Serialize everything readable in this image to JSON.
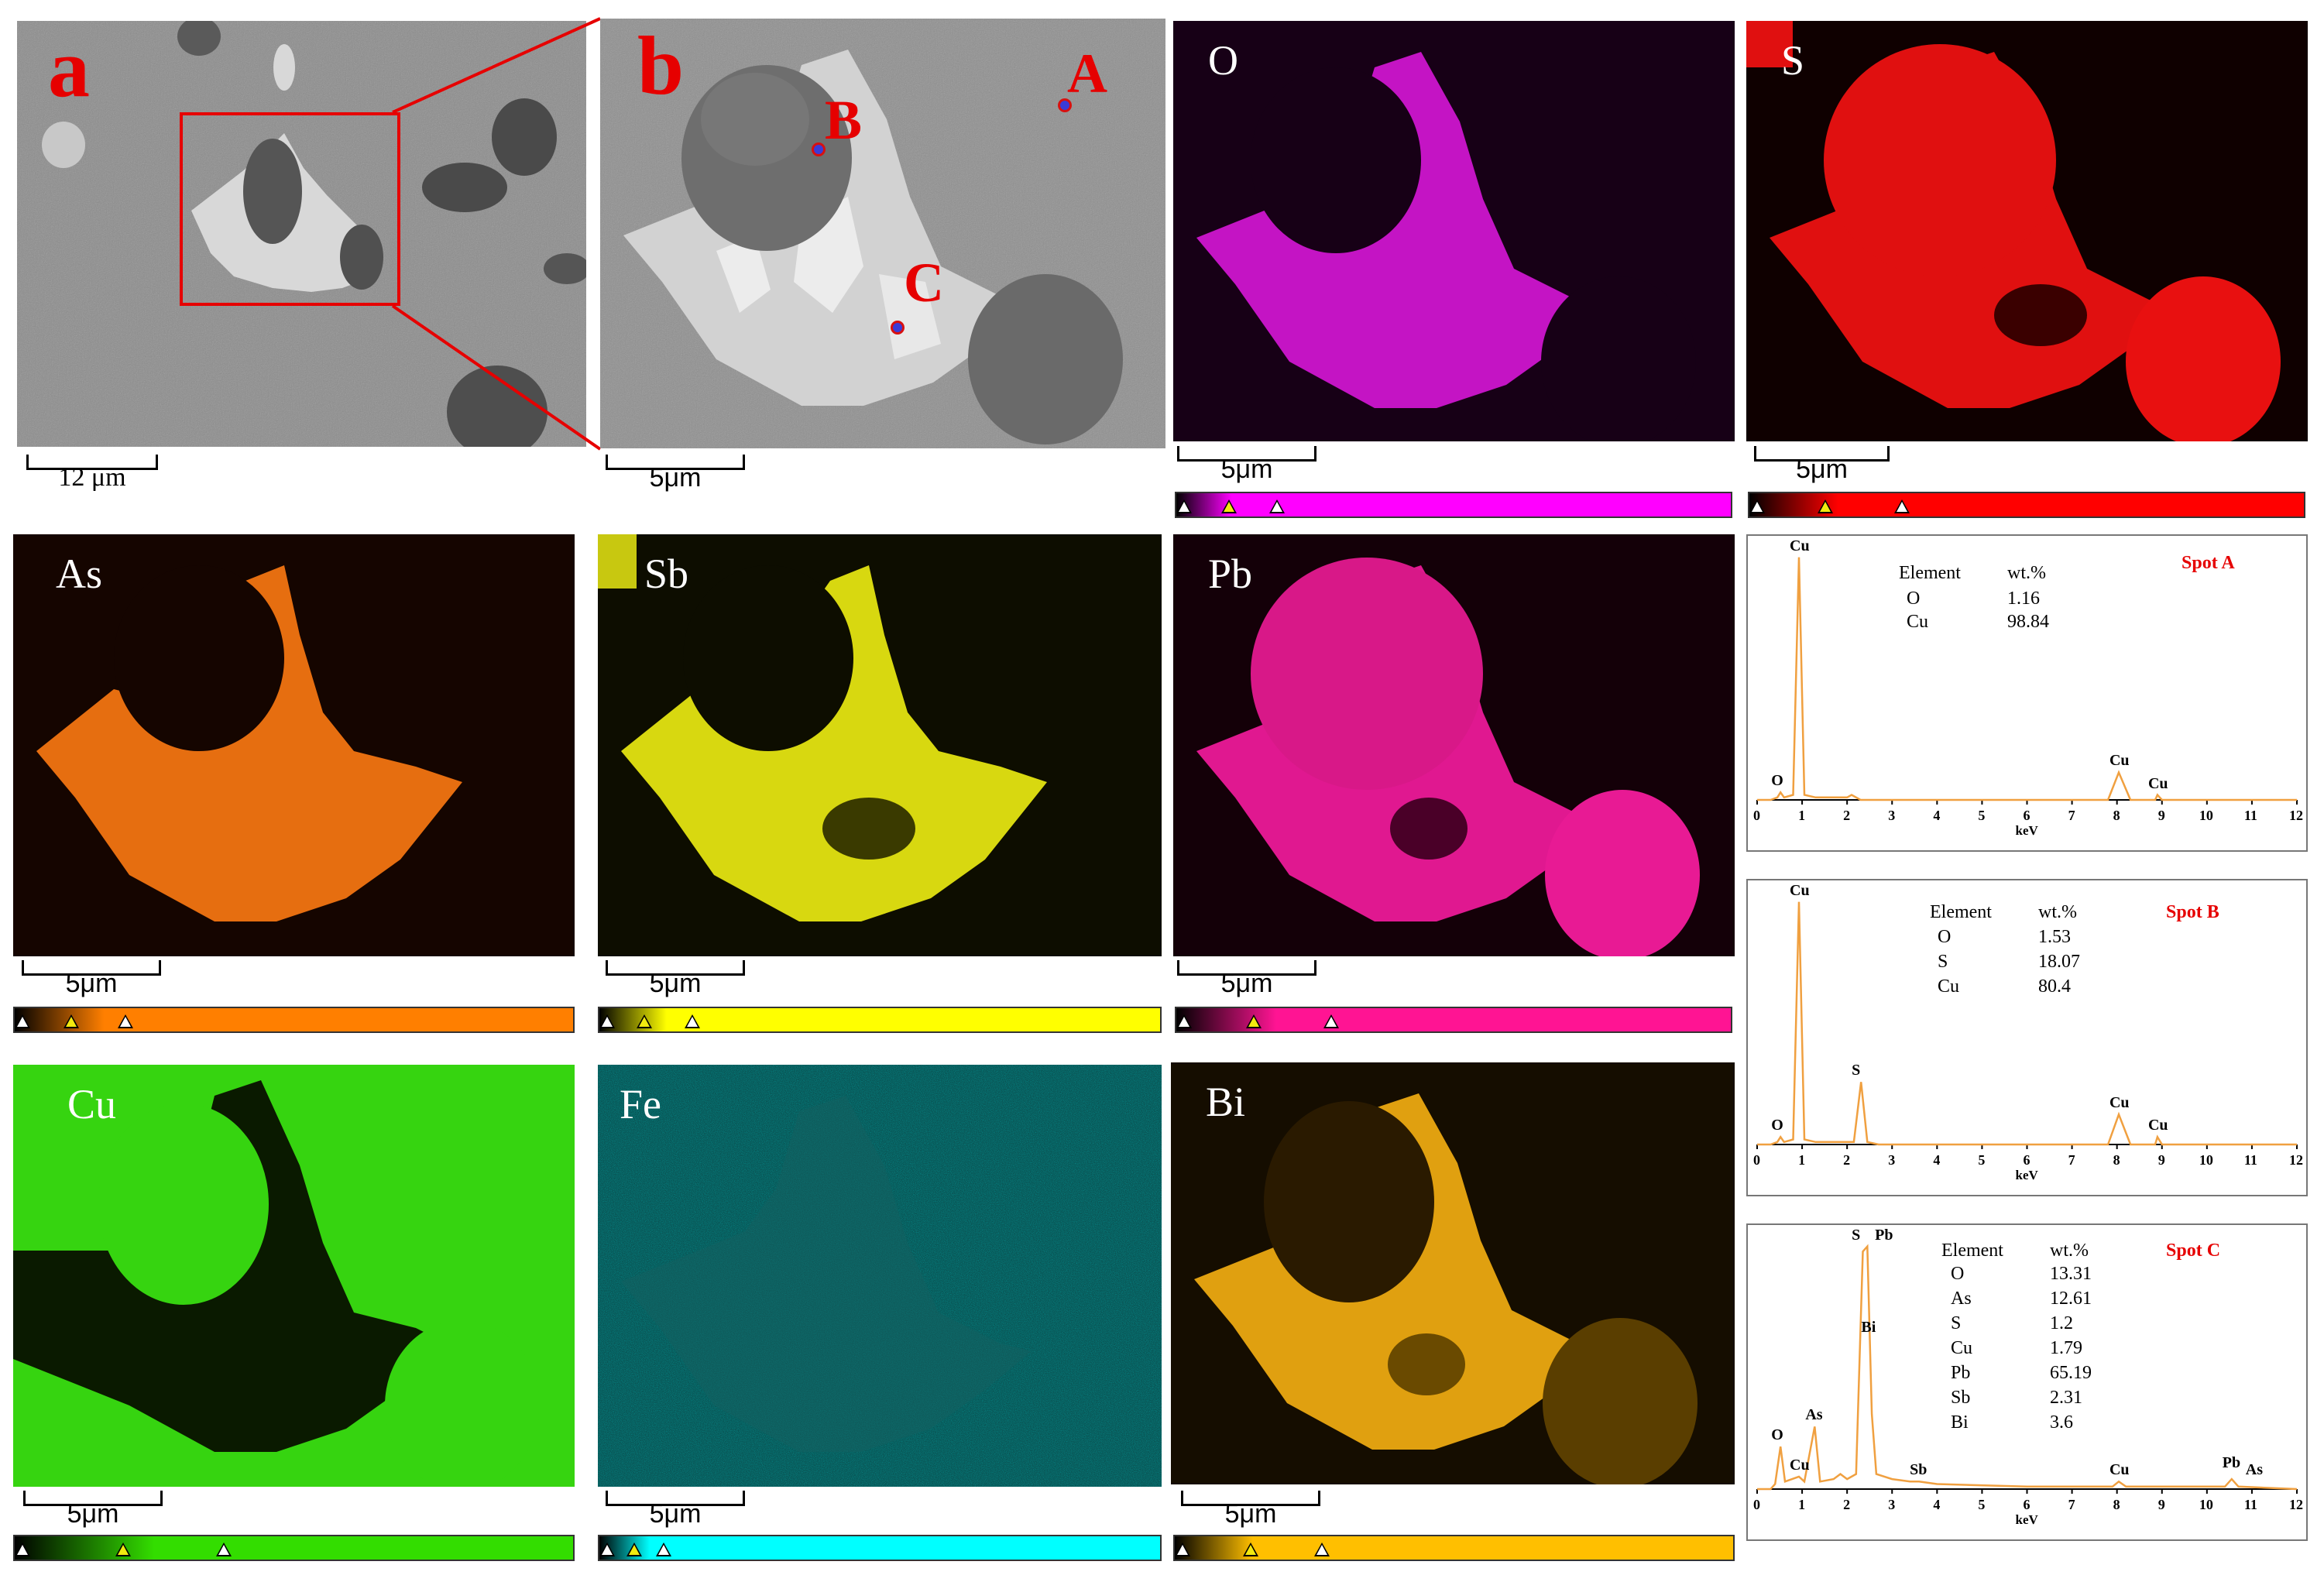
{
  "panels": {
    "a": {
      "label": "a",
      "scale": "12 μm"
    },
    "b": {
      "label": "b",
      "scale": "5μm",
      "spots": [
        "A",
        "B",
        "C"
      ]
    },
    "O": {
      "label": "O",
      "scale": "5μm",
      "color": "#ff00ff"
    },
    "S": {
      "label": "S",
      "scale": "5μm",
      "color": "#ff0000"
    },
    "As": {
      "label": "As",
      "scale": "5μm",
      "color": "#ff7f00"
    },
    "Sb": {
      "label": "Sb",
      "scale": "5μm",
      "color": "#ffff00"
    },
    "Pb": {
      "label": "Pb",
      "scale": "5μm",
      "color": "#ff1493"
    },
    "Cu": {
      "label": "Cu",
      "scale": "5μm",
      "color": "#33dd00"
    },
    "Fe": {
      "label": "Fe",
      "scale": "5μm",
      "color": "#00ffff"
    },
    "Bi": {
      "label": "Bi",
      "scale": "5μm",
      "color": "#ffbf00"
    }
  },
  "spectra": [
    {
      "title": "Spot A",
      "header": [
        "Element",
        "wt.%"
      ],
      "rows": [
        [
          "O",
          "1.16"
        ],
        [
          "Cu",
          "98.84"
        ]
      ],
      "peaks": [
        {
          "label": "Cu",
          "kev": 0.93,
          "h": 0.97
        },
        {
          "label": "O",
          "kev": 0.52,
          "h": 0.03
        },
        {
          "label": "Cu",
          "kev": 8.04,
          "h": 0.11
        },
        {
          "label": "Cu",
          "kev": 8.9,
          "h": 0.02
        }
      ],
      "trace": [
        [
          0,
          0.0
        ],
        [
          0.3,
          0.0
        ],
        [
          0.45,
          0.01
        ],
        [
          0.52,
          0.03
        ],
        [
          0.6,
          0.01
        ],
        [
          0.8,
          0.02
        ],
        [
          0.93,
          0.97
        ],
        [
          1.05,
          0.02
        ],
        [
          1.3,
          0.01
        ],
        [
          2.0,
          0.01
        ],
        [
          2.1,
          0.02
        ],
        [
          2.3,
          0.0
        ],
        [
          7.8,
          0.0
        ],
        [
          8.04,
          0.11
        ],
        [
          8.3,
          0.0
        ],
        [
          8.85,
          0.0
        ],
        [
          8.9,
          0.02
        ],
        [
          9.0,
          0.0
        ],
        [
          12,
          0.0
        ]
      ]
    },
    {
      "title": "Spot B",
      "header": [
        "Element",
        "wt.%"
      ],
      "rows": [
        [
          "O",
          "1.53"
        ],
        [
          "S",
          "18.07"
        ],
        [
          "Cu",
          "80.4"
        ]
      ],
      "peaks": [
        {
          "label": "Cu",
          "kev": 0.93,
          "h": 0.97
        },
        {
          "label": "O",
          "kev": 0.52,
          "h": 0.03
        },
        {
          "label": "S",
          "kev": 2.31,
          "h": 0.25
        },
        {
          "label": "Cu",
          "kev": 8.04,
          "h": 0.12
        },
        {
          "label": "Cu",
          "kev": 8.9,
          "h": 0.03
        }
      ],
      "trace": [
        [
          0,
          0.0
        ],
        [
          0.3,
          0.0
        ],
        [
          0.45,
          0.01
        ],
        [
          0.52,
          0.03
        ],
        [
          0.6,
          0.01
        ],
        [
          0.8,
          0.02
        ],
        [
          0.93,
          0.97
        ],
        [
          1.05,
          0.02
        ],
        [
          1.3,
          0.01
        ],
        [
          2.15,
          0.01
        ],
        [
          2.31,
          0.25
        ],
        [
          2.45,
          0.01
        ],
        [
          2.7,
          0.0
        ],
        [
          7.8,
          0.0
        ],
        [
          8.04,
          0.12
        ],
        [
          8.3,
          0.0
        ],
        [
          8.85,
          0.0
        ],
        [
          8.9,
          0.03
        ],
        [
          9.0,
          0.0
        ],
        [
          12,
          0.0
        ]
      ]
    },
    {
      "title": "Spot C",
      "header": [
        "Element",
        "wt.%"
      ],
      "rows": [
        [
          "O",
          "13.31"
        ],
        [
          "As",
          "12.61"
        ],
        [
          "S",
          "1.2"
        ],
        [
          "Cu",
          "1.79"
        ],
        [
          "Pb",
          "65.19"
        ],
        [
          "Sb",
          "2.31"
        ],
        [
          "Bi",
          "3.6"
        ]
      ],
      "peaks": [
        {
          "label": "S",
          "kev": 2.31,
          "h": 0.97
        },
        {
          "label": "Pb",
          "kev": 2.45,
          "h": 0.97
        },
        {
          "label": "Bi",
          "kev": 2.52,
          "h": 0.6
        },
        {
          "label": "O",
          "kev": 0.52,
          "h": 0.17
        },
        {
          "label": "As",
          "kev": 1.28,
          "h": 0.25
        },
        {
          "label": "Cu",
          "kev": 0.93,
          "h": 0.05
        },
        {
          "label": "Sb",
          "kev": 3.6,
          "h": 0.03
        },
        {
          "label": "Cu",
          "kev": 8.04,
          "h": 0.03
        },
        {
          "label": "Pb",
          "kev": 10.55,
          "h": 0.06
        },
        {
          "label": "As",
          "kev": 10.53,
          "h": 0.03
        }
      ],
      "trace": [
        [
          0,
          0.0
        ],
        [
          0.3,
          0.0
        ],
        [
          0.4,
          0.02
        ],
        [
          0.52,
          0.17
        ],
        [
          0.62,
          0.03
        ],
        [
          0.93,
          0.05
        ],
        [
          1.05,
          0.03
        ],
        [
          1.28,
          0.25
        ],
        [
          1.4,
          0.03
        ],
        [
          1.7,
          0.04
        ],
        [
          1.85,
          0.06
        ],
        [
          2.0,
          0.04
        ],
        [
          2.2,
          0.06
        ],
        [
          2.35,
          0.95
        ],
        [
          2.45,
          0.97
        ],
        [
          2.55,
          0.3
        ],
        [
          2.65,
          0.06
        ],
        [
          3.0,
          0.04
        ],
        [
          3.4,
          0.03
        ],
        [
          3.6,
          0.03
        ],
        [
          4.0,
          0.02
        ],
        [
          6.0,
          0.01
        ],
        [
          7.9,
          0.01
        ],
        [
          8.04,
          0.03
        ],
        [
          8.2,
          0.01
        ],
        [
          10.4,
          0.01
        ],
        [
          10.55,
          0.04
        ],
        [
          10.7,
          0.01
        ],
        [
          12,
          0.0
        ]
      ]
    }
  ],
  "axis": {
    "ticks": [
      "0",
      "1",
      "2",
      "3",
      "4",
      "5",
      "6",
      "7",
      "8",
      "9",
      "10",
      "11",
      "12"
    ],
    "unit": "keV"
  }
}
